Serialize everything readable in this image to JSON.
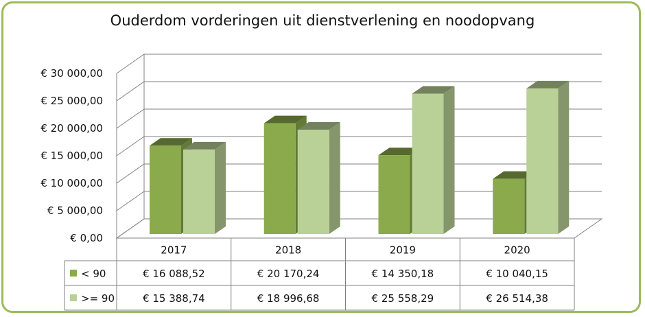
{
  "chart_data": {
    "type": "bar",
    "title": "Ouderdom vorderingen uit dienstverlening en noodopvang",
    "categories": [
      "2017",
      "2018",
      "2019",
      "2020"
    ],
    "series": [
      {
        "name": "< 90",
        "color": "#8aaa4b",
        "values": [
          16088.52,
          20170.24,
          14350.18,
          10040.15
        ],
        "labels": [
          "€ 16 088,52",
          "€ 20 170,24",
          "€ 14 350,18",
          "€ 10 040,15"
        ]
      },
      {
        "name": ">= 90",
        "color": "#b9d196",
        "values": [
          15388.74,
          18996.68,
          25558.29,
          26514.38
        ],
        "labels": [
          "€ 15 388,74",
          "€ 18 996,68",
          "€ 25 558,29",
          "€ 26 514,38"
        ]
      }
    ],
    "yticks": [
      0,
      5000,
      10000,
      15000,
      20000,
      25000,
      30000
    ],
    "yticklabels": [
      "€  0,00",
      "€ 5 000,00",
      "€ 10 000,00",
      "€ 15 000,00",
      "€ 20 000,00",
      "€ 25 000,00",
      "€ 30 000,00"
    ],
    "ylim": [
      0,
      30000
    ],
    "grid": true,
    "legend": "data-table"
  }
}
